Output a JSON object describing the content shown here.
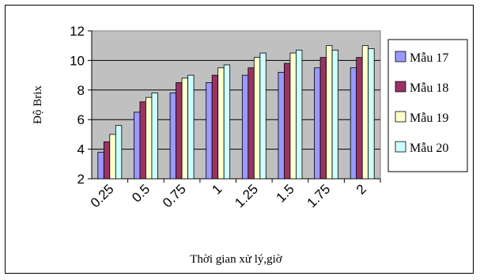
{
  "chart_data": {
    "type": "bar",
    "title": "",
    "xlabel": "Thời gian xử lý,giờ",
    "ylabel": "Độ Brix",
    "categories": [
      "0.25",
      "0.5",
      "0.75",
      "1",
      "1.25",
      "1.5",
      "1.75",
      "2"
    ],
    "ylim": [
      2,
      12
    ],
    "yticks": [
      2,
      4,
      6,
      8,
      10,
      12
    ],
    "grid": true,
    "plot_background": "#c0c0c0",
    "legend_position": "right",
    "series": [
      {
        "name": "Mẫu 17",
        "color": "#9999ff",
        "values": [
          3.8,
          6.5,
          7.8,
          8.5,
          9.0,
          9.2,
          9.5,
          9.5
        ]
      },
      {
        "name": "Mẫu 18",
        "color": "#993366",
        "values": [
          4.5,
          7.2,
          8.5,
          9.0,
          9.5,
          9.8,
          10.2,
          10.2
        ]
      },
      {
        "name": "Mẫu 19",
        "color": "#ffffcc",
        "values": [
          5.0,
          7.5,
          8.8,
          9.5,
          10.2,
          10.5,
          11.0,
          11.0
        ]
      },
      {
        "name": "Mẫu 20",
        "color": "#ccffff",
        "values": [
          5.6,
          7.8,
          9.0,
          9.7,
          10.5,
          10.7,
          10.7,
          10.8
        ]
      }
    ]
  }
}
